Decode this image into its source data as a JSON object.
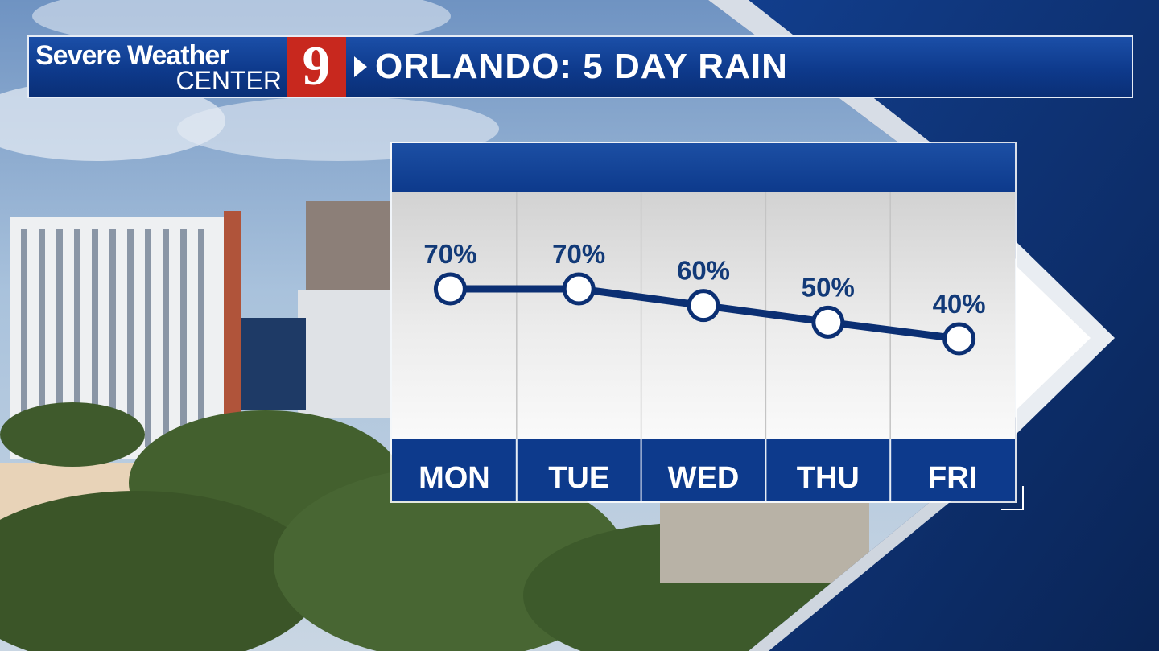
{
  "header": {
    "brand_line1": "Severe Weather",
    "brand_line2": "CENTER",
    "channel_logo": "9",
    "title": "ORLANDO: 5 DAY RAIN"
  },
  "colors": {
    "header_blue": "#0e3a8c",
    "line_navy": "#0b2f73",
    "logo_red": "#c8281e"
  },
  "icons": [
    "play-arrow-icon",
    "corner-bracket-icon"
  ],
  "chart_data": {
    "type": "line",
    "categories": [
      "MON",
      "TUE",
      "WED",
      "THU",
      "FRI"
    ],
    "values": [
      70,
      70,
      60,
      50,
      40
    ],
    "labels": [
      "70%",
      "70%",
      "60%",
      "50%",
      "40%"
    ],
    "unit": "%",
    "ylim": [
      0,
      100
    ],
    "grid": "vertical"
  }
}
